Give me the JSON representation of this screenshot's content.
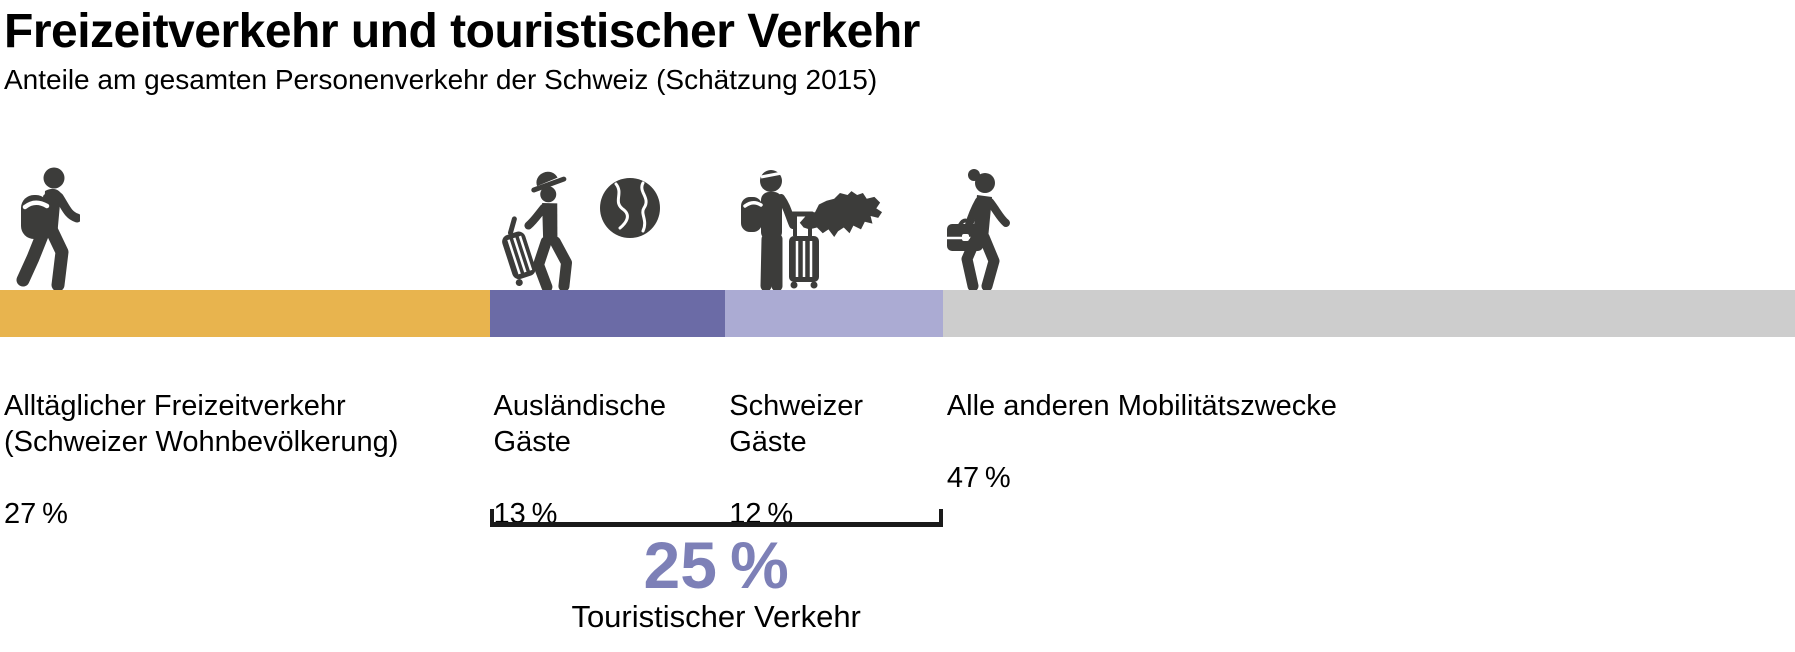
{
  "colors": {
    "background": "#ffffff",
    "text": "#000000",
    "icon": "#3c3c3a",
    "bracket": "#1a1a1a",
    "annotation_value": "#7d80b7"
  },
  "icons": {
    "segment_1": "walking-hiker-with-backpack",
    "segment_2": [
      "traveler-with-hat-pulling-suitcase",
      "globe"
    ],
    "segment_3": [
      "traveler-with-backpack-and-trolley",
      "switzerland-map"
    ],
    "segment_4": "walking-person-with-briefcase"
  },
  "chart_data": {
    "type": "bar",
    "variant": "100%-stacked-horizontal-single-bar",
    "title": "Freizeitverkehr und touristischer Verkehr",
    "subtitle": "Anteile am gesamten Personenverkehr der Schweiz (Schätzung 2015)",
    "unit": "%",
    "legend_position": "below-bar",
    "grid": false,
    "segments": [
      {
        "label": "Alltäglicher Freizeitverkehr (Schweizer Wohnbevölkerung)",
        "label_display": "Alltäglicher Freizeitverkehr\n(Schweizer Wohnbevölkerung)",
        "value_pct": 27,
        "value_label": "27 %",
        "color": "#e8b44e",
        "icon": "walking-hiker-with-backpack"
      },
      {
        "label": "Ausländische Gäste",
        "label_display": "Ausländische\nGäste",
        "value_pct": 13,
        "value_label": "13 %",
        "color": "#6b6ba6",
        "icon": "traveler-with-hat-pulling-suitcase-and-globe"
      },
      {
        "label": "Schweizer Gäste",
        "label_display": "Schweizer\nGäste",
        "value_pct": 12,
        "value_label": "12 %",
        "color": "#ababd3",
        "icon": "traveler-with-backpack-trolley-and-swiss-map"
      },
      {
        "label": "Alle anderen Mobilitätszwecke",
        "label_display": "Alle anderen Mobilitätszwecke",
        "value_pct": 47,
        "value_label": "47 %",
        "color": "#cdcdcd",
        "icon": "walking-person-with-briefcase"
      }
    ],
    "annotation": {
      "value_pct": 25,
      "value_label": "25 %",
      "label": "Touristischer Verkehr",
      "spans_segments": [
        "Ausländische Gäste",
        "Schweizer Gäste"
      ]
    }
  }
}
